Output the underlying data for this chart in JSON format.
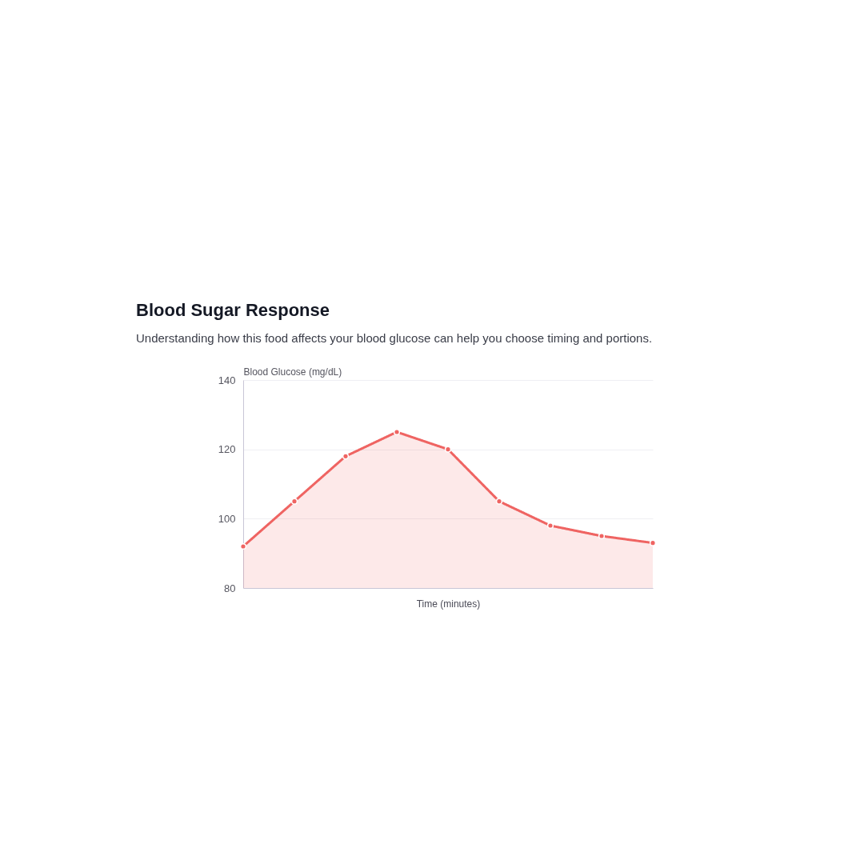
{
  "chart_data": {
    "type": "area",
    "title": "Blood Sugar Response",
    "subtitle": "Understanding how this food affects your blood glucose can help you choose timing and portions.",
    "xlabel": "Time (minutes)",
    "ylabel": "Blood Glucose (mg/dL)",
    "categories": [
      null,
      null,
      null,
      null,
      null,
      null,
      null,
      null,
      null
    ],
    "series": [
      {
        "color": "#ef6462",
        "values": [
          92,
          105,
          118,
          125,
          120,
          105,
          98,
          95,
          93
        ]
      }
    ],
    "ylim": [
      80,
      140
    ],
    "yticks": [
      80,
      100,
      120,
      140
    ],
    "grid": "y",
    "marker": "circle",
    "tick_labels": "y"
  }
}
